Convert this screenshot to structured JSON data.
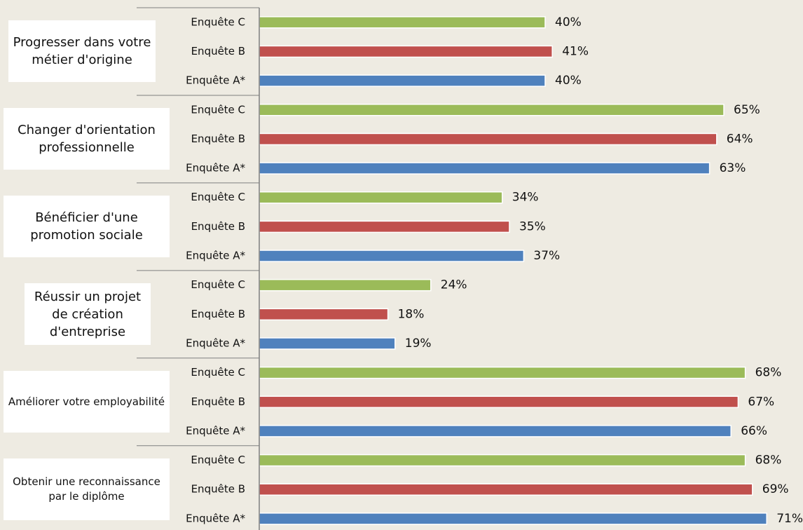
{
  "chart_data": {
    "type": "hbar_grouped",
    "categories": [
      "Progresser dans votre métier d'origine",
      "Changer d'orientation professionnelle",
      "Bénéficier d'une promotion sociale",
      "Réussir un projet de création d'entreprise",
      "Améliorer votre employabilité",
      "Obtenir une reconnaissance par le diplôme"
    ],
    "series": [
      {
        "name": "Enquête C",
        "color": "#9bbb59",
        "values": [
          40,
          65,
          34,
          24,
          68,
          68
        ],
        "value_labels": [
          "40%",
          "65%",
          "34%",
          "24%",
          "68%",
          "68%"
        ]
      },
      {
        "name": "Enquête B",
        "color": "#c0504d",
        "values": [
          41,
          64,
          35,
          18,
          67,
          69
        ],
        "value_labels": [
          "41%",
          "64%",
          "35%",
          "18%",
          "67%",
          "69%"
        ]
      },
      {
        "name": "Enquête A*",
        "color": "#4f81bd",
        "values": [
          40,
          63,
          37,
          19,
          66,
          71
        ],
        "value_labels": [
          "40%",
          "63%",
          "37%",
          "19%",
          "66%",
          "71%"
        ]
      }
    ]
  }
}
